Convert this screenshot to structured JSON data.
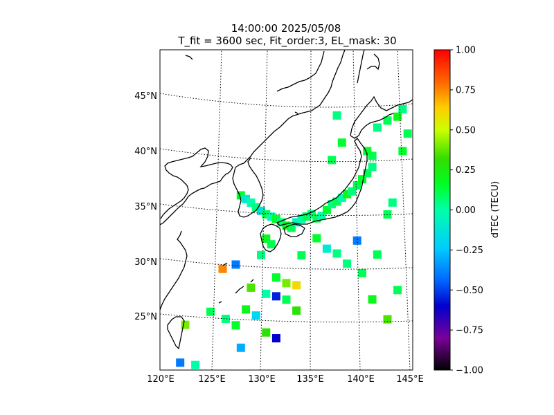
{
  "title_line1": "14:00:00 2025/05/08",
  "title_line2": "T_fit = 3600 sec, Fit_order:3, EL_mask: 30",
  "chart_data": {
    "type": "heatmap",
    "map_projection": "lambert-conformal",
    "lon_ticks": [
      {
        "value": 120,
        "label": "120°E"
      },
      {
        "value": 125,
        "label": "125°E"
      },
      {
        "value": 130,
        "label": "130°E"
      },
      {
        "value": 135,
        "label": "135°E"
      },
      {
        "value": 140,
        "label": "140°E"
      },
      {
        "value": 145,
        "label": "145°E"
      }
    ],
    "lat_ticks": [
      {
        "value": 25,
        "label": "25°N"
      },
      {
        "value": 30,
        "label": "30°N"
      },
      {
        "value": 35,
        "label": "35°N"
      },
      {
        "value": 40,
        "label": "40°N"
      },
      {
        "value": 45,
        "label": "45°N"
      }
    ],
    "lon_range": [
      120,
      145
    ],
    "lat_range": [
      20,
      49
    ],
    "grid": true,
    "colorbar": {
      "label": "dTEC (TECU)",
      "range": [
        -1.0,
        1.0
      ],
      "ticks": [
        {
          "value": 1.0,
          "label": "1.00"
        },
        {
          "value": 0.75,
          "label": "0.75"
        },
        {
          "value": 0.5,
          "label": "0.50"
        },
        {
          "value": 0.25,
          "label": "0.25"
        },
        {
          "value": 0.0,
          "label": "0.00"
        },
        {
          "value": -0.25,
          "label": "−0.25"
        },
        {
          "value": -0.5,
          "label": "−0.50"
        },
        {
          "value": -0.75,
          "label": "−0.75"
        },
        {
          "value": -1.0,
          "label": "−1.00"
        }
      ],
      "colormap": "nipy_spectral"
    },
    "points": [
      [
        128.0,
        36.8,
        0.15
      ],
      [
        128.5,
        36.5,
        -0.1
      ],
      [
        129.0,
        36.2,
        0.0
      ],
      [
        129.5,
        35.8,
        0.05
      ],
      [
        130.0,
        35.5,
        -0.15
      ],
      [
        130.5,
        35.2,
        0.1
      ],
      [
        131.0,
        35.0,
        0.0
      ],
      [
        131.5,
        34.8,
        0.15
      ],
      [
        132.0,
        34.5,
        0.05
      ],
      [
        132.5,
        34.2,
        0.2
      ],
      [
        133.0,
        34.0,
        0.1
      ],
      [
        133.5,
        34.5,
        -0.05
      ],
      [
        134.0,
        34.8,
        0.0
      ],
      [
        134.5,
        35.0,
        0.1
      ],
      [
        135.0,
        35.2,
        0.05
      ],
      [
        135.5,
        34.8,
        0.1
      ],
      [
        136.0,
        35.0,
        0.0
      ],
      [
        136.5,
        35.5,
        0.15
      ],
      [
        137.0,
        36.0,
        0.05
      ],
      [
        137.5,
        36.2,
        0.1
      ],
      [
        138.0,
        36.5,
        0.0
      ],
      [
        138.5,
        36.8,
        0.2
      ],
      [
        139.0,
        37.0,
        0.05
      ],
      [
        139.5,
        37.5,
        0.1
      ],
      [
        140.0,
        38.0,
        0.15
      ],
      [
        140.5,
        38.5,
        0.1
      ],
      [
        141.0,
        39.0,
        0.05
      ],
      [
        141.0,
        40.0,
        0.1
      ],
      [
        140.5,
        40.5,
        0.15
      ],
      [
        141.5,
        42.5,
        0.05
      ],
      [
        142.5,
        43.0,
        0.1
      ],
      [
        143.5,
        43.2,
        0.2
      ],
      [
        144.0,
        43.8,
        0.05
      ],
      [
        130.5,
        33.0,
        0.2
      ],
      [
        131.0,
        32.5,
        0.1
      ],
      [
        130.0,
        31.5,
        0.05
      ],
      [
        126.2,
        30.0,
        0.75
      ],
      [
        127.5,
        30.5,
        -0.4
      ],
      [
        131.5,
        29.5,
        0.15
      ],
      [
        132.5,
        29.0,
        0.4
      ],
      [
        133.5,
        28.8,
        0.6
      ],
      [
        129.0,
        28.5,
        0.35
      ],
      [
        130.5,
        28.0,
        0.0
      ],
      [
        131.5,
        27.8,
        -0.55
      ],
      [
        132.5,
        27.5,
        0.1
      ],
      [
        133.5,
        26.5,
        0.3
      ],
      [
        128.5,
        26.5,
        0.2
      ],
      [
        129.5,
        26.0,
        -0.2
      ],
      [
        125.0,
        26.0,
        0.1
      ],
      [
        126.5,
        25.5,
        0.05
      ],
      [
        127.5,
        25.0,
        0.15
      ],
      [
        130.5,
        24.5,
        0.3
      ],
      [
        131.5,
        24.0,
        -0.6
      ],
      [
        128.0,
        23.0,
        -0.3
      ],
      [
        122.5,
        24.5,
        0.4
      ],
      [
        123.5,
        21.0,
        0.0
      ],
      [
        122.0,
        21.0,
        -0.4
      ],
      [
        141.0,
        27.0,
        0.2
      ],
      [
        142.5,
        25.0,
        0.35
      ],
      [
        143.5,
        27.5,
        0.1
      ],
      [
        140.0,
        29.5,
        0.1
      ],
      [
        137.5,
        31.5,
        0.05
      ],
      [
        139.5,
        32.5,
        -0.4
      ],
      [
        141.5,
        31.0,
        0.1
      ],
      [
        142.5,
        34.5,
        0.1
      ],
      [
        143.0,
        35.5,
        0.05
      ],
      [
        144.5,
        41.5,
        0.1
      ],
      [
        144.0,
        40.0,
        0.15
      ],
      [
        137.0,
        40.0,
        0.1
      ],
      [
        138.0,
        41.5,
        0.15
      ],
      [
        137.5,
        44.0,
        0.05
      ],
      [
        135.5,
        33.0,
        0.15
      ],
      [
        134.0,
        31.5,
        0.1
      ],
      [
        136.5,
        32.0,
        -0.1
      ],
      [
        138.5,
        30.5,
        0.05
      ]
    ]
  }
}
